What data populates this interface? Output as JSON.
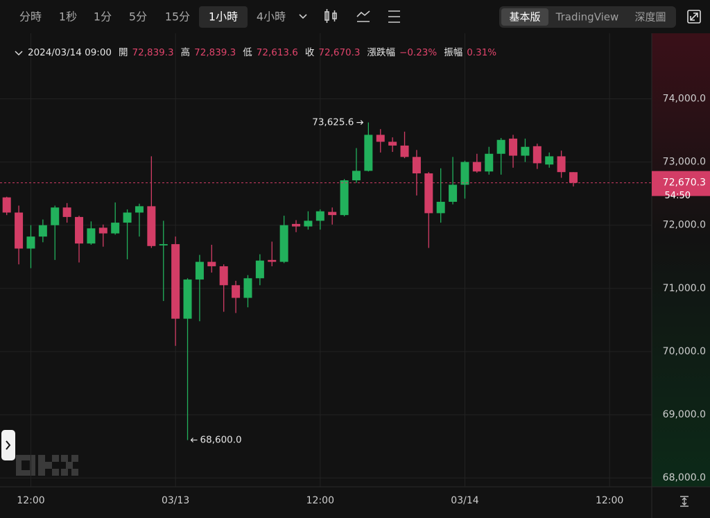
{
  "toolbar": {
    "intervals": [
      "分時",
      "1秒",
      "1分",
      "5分",
      "15分",
      "1小時",
      "4小時"
    ],
    "active_interval": 5,
    "views": [
      "基本版",
      "TradingView",
      "深度圖"
    ],
    "active_view": 0
  },
  "info": {
    "time": "2024/03/14 09:00",
    "fields": [
      {
        "label": "開",
        "value": "72,839.3"
      },
      {
        "label": "高",
        "value": "72,839.3"
      },
      {
        "label": "低",
        "value": "72,613.6"
      },
      {
        "label": "收",
        "value": "72,670.3"
      },
      {
        "label": "漲跌幅",
        "value": "−0.23%"
      },
      {
        "label": "振幅",
        "value": "0.31%"
      }
    ]
  },
  "chart_data": {
    "type": "candlestick",
    "categories": [
      null,
      null,
      "12:00",
      null,
      null,
      null,
      null,
      null,
      null,
      null,
      null,
      null,
      null,
      null,
      "03/13",
      null,
      null,
      null,
      null,
      null,
      null,
      null,
      null,
      null,
      null,
      null,
      "12:00",
      null,
      null,
      null,
      null,
      null,
      null,
      null,
      null,
      null,
      null,
      null,
      "03/14",
      null,
      null,
      null,
      null,
      null,
      null,
      null,
      null,
      null,
      null,
      null,
      "12:00",
      null,
      null,
      null
    ],
    "open": [
      72440,
      72200,
      71630,
      71820,
      72000,
      72280,
      72130,
      71710,
      71960,
      71870,
      72040,
      72200,
      72300,
      71680,
      71700,
      70520,
      71140,
      71420,
      71350,
      71050,
      70850,
      71160,
      71450,
      71420,
      72020,
      71980,
      72070,
      72210,
      72160,
      72710,
      72860,
      73430,
      73320,
      73260,
      73080,
      72820,
      72190,
      72370,
      72640,
      73000,
      72850,
      73130,
      73370,
      73100,
      73250,
      72960,
      73090,
      72839.3,
      null,
      null,
      null,
      null,
      null,
      null
    ],
    "high": [
      72450,
      72310,
      72000,
      72090,
      72310,
      72350,
      72150,
      72060,
      72010,
      72360,
      72250,
      72340,
      73090,
      72070,
      71820,
      71160,
      71530,
      71690,
      71380,
      71120,
      71210,
      71540,
      71740,
      72150,
      72080,
      72220,
      72250,
      72280,
      72730,
      73220,
      73625.6,
      73520,
      73390,
      73480,
      73190,
      72840,
      72900,
      73080,
      73020,
      73130,
      73240,
      73380,
      73430,
      73370,
      73290,
      73150,
      73180,
      72839.3,
      null,
      null,
      null,
      null,
      null,
      null
    ],
    "low": [
      72160,
      71380,
      71320,
      71730,
      71450,
      72040,
      71410,
      71690,
      71660,
      71850,
      71460,
      71820,
      71640,
      70800,
      70090,
      68600,
      70480,
      71250,
      70630,
      70610,
      70700,
      71050,
      71350,
      71400,
      71890,
      71930,
      71930,
      72010,
      72140,
      72670,
      72850,
      73150,
      73160,
      73060,
      72470,
      71640,
      72040,
      72330,
      72420,
      72830,
      72800,
      72800,
      72910,
      73000,
      72890,
      72910,
      72750,
      72613.6,
      null,
      null,
      null,
      null,
      null,
      null
    ],
    "close": [
      72200,
      71630,
      71820,
      72000,
      72280,
      72130,
      71710,
      71950,
      71870,
      72040,
      72200,
      72300,
      71670,
      71700,
      70520,
      71140,
      71420,
      71350,
      71050,
      70850,
      71160,
      71440,
      71420,
      72000,
      71980,
      72070,
      72220,
      72160,
      72710,
      72860,
      73430,
      73320,
      73260,
      73080,
      72820,
      72190,
      72370,
      72640,
      73000,
      72850,
      73130,
      73350,
      73100,
      73240,
      72980,
      73090,
      72840,
      72670.3,
      null,
      null,
      null,
      null,
      null,
      null
    ],
    "up_color": "#22b15c",
    "down_color": "#d33d66",
    "ylim": [
      67860,
      74960
    ],
    "yticks": [
      {
        "value": 68000,
        "label": "68,000.0"
      },
      {
        "value": 69000,
        "label": "69,000.0"
      },
      {
        "value": 70000,
        "label": "70,000.0"
      },
      {
        "value": 71000,
        "label": "71,000.0"
      },
      {
        "value": 72000,
        "label": "72,000.0"
      },
      {
        "value": 73000,
        "label": "73,000.0"
      },
      {
        "value": 74000,
        "label": "74,000.0"
      }
    ],
    "grid": true,
    "annotations": {
      "high": "73,625.6",
      "low": "68,600.0"
    },
    "last_price_label": "72,670.3",
    "countdown": "54:50"
  }
}
